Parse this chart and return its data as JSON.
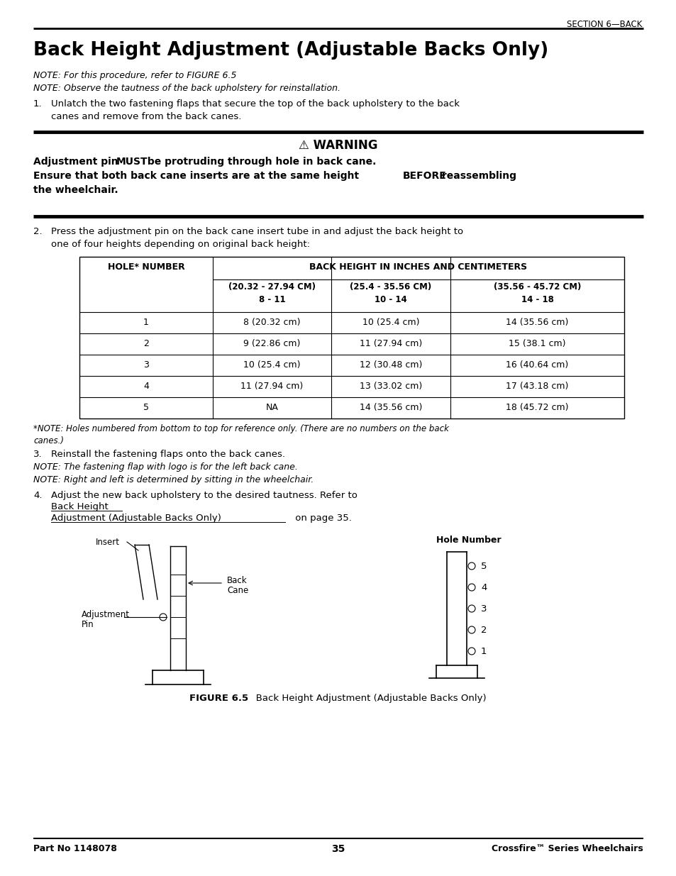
{
  "section_header": "SECTION 6—BACK",
  "title": "Back Height Adjustment (Adjustable Backs Only)",
  "note1": "NOTE: For this procedure, refer to FIGURE 6.5",
  "note2": "NOTE: Observe the tautness of the back upholstery for reinstallation.",
  "step1_num": "1.",
  "step1": "Unlatch the two fastening flaps that secure the top of the back upholstery to the back\ncanes and remove from the back canes.",
  "warning_title": "⚠ WARNING",
  "warning_line1a": "Adjustment pin ",
  "warning_line1b": "MUST",
  "warning_line1c": " be protruding through hole in back cane.",
  "warning_line2a": "Ensure that both back cane inserts are at the same height ",
  "warning_line2b": "BEFORE",
  "warning_line2c": " reassembling",
  "warning_line3": "the wheelchair.",
  "step2_num": "2.",
  "step2": "Press the adjustment pin on the back cane insert tube in and adjust the back height to\none of four heights depending on original back height:",
  "table_col0_header": "HOLE* NUMBER",
  "table_col_header": "BACK HEIGHT IN INCHES AND CENTIMETERS",
  "table_sub_col1": "(20.32 - 27.94 CM)\n8 - 11",
  "table_sub_col2": "(25.4 - 35.56 CM)\n10 - 14",
  "table_sub_col3": "(35.56 - 45.72 CM)\n14 - 18",
  "table_rows": [
    [
      "1",
      "8 (20.32 cm)",
      "10 (25.4 cm)",
      "14 (35.56 cm)"
    ],
    [
      "2",
      "9 (22.86 cm)",
      "11 (27.94 cm)",
      "15 (38.1 cm)"
    ],
    [
      "3",
      "10 (25.4 cm)",
      "12 (30.48 cm)",
      "16 (40.64 cm)"
    ],
    [
      "4",
      "11 (27.94 cm)",
      "13 (33.02 cm)",
      "17 (43.18 cm)"
    ],
    [
      "5",
      "NA",
      "14 (35.56 cm)",
      "18 (45.72 cm)"
    ]
  ],
  "footnote": "*NOTE: Holes numbered from bottom to top for reference only. (There are no numbers on the back\ncanes.)",
  "step3_num": "3.",
  "step3": "Reinstall the fastening flaps onto the back canes.",
  "note3": "NOTE: The fastening flap with logo is for the left back cane.",
  "note4": "NOTE: Right and left is determined by sitting in the wheelchair.",
  "step4_num": "4.",
  "step4_main": "Adjust the new back upholstery to the desired tautness. Refer to ",
  "step4_link1": "Back Height",
  "step4_link2": "Adjustment (Adjustable Backs Only)",
  "step4_post": " on page 35.",
  "figure_caption_bold": "FIGURE 6.5",
  "figure_caption_rest": "   Back Height Adjustment (Adjustable Backs Only)",
  "footer_left": "Part No 1148078",
  "footer_center": "35",
  "footer_right": "Crossfire™ Series Wheelchairs",
  "bg_color": "#ffffff",
  "text_color": "#000000"
}
